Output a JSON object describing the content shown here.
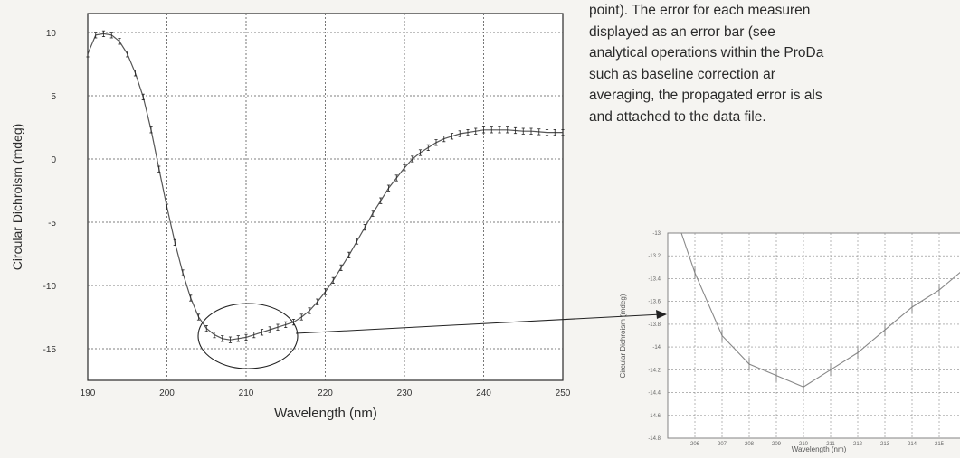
{
  "paragraph": {
    "lines": [
      "point). The error for each measuren",
      "displayed  as  an  error  bar  (see",
      "analytical operations within the ProDa",
      "such   as   baseline   correction   ar",
      "averaging, the propagated error is als",
      "and attached to the data file."
    ]
  },
  "chart_data": [
    {
      "type": "line",
      "xlabel": "Wavelength (nm)",
      "ylabel": "Circular Dichroism (mdeg)",
      "xlim": [
        190,
        250
      ],
      "ylim": [
        -17.5,
        11.5
      ],
      "xticks": [
        190,
        200,
        210,
        220,
        230,
        240,
        250
      ],
      "yticks": [
        10,
        5,
        0,
        -5,
        -10,
        -15
      ],
      "grid": true,
      "error_bars": true,
      "series": [
        {
          "x": [
            190,
            191,
            192,
            193,
            194,
            195,
            196,
            197,
            198,
            199,
            200,
            201,
            202,
            203,
            204,
            205,
            206,
            207,
            208,
            209,
            210,
            211,
            212,
            213,
            214,
            215,
            216,
            217,
            218,
            219,
            220,
            221,
            222,
            223,
            224,
            225,
            226,
            227,
            228,
            229,
            230,
            231,
            232,
            233,
            234,
            235,
            236,
            237,
            238,
            239,
            240,
            241,
            242,
            243,
            244,
            245,
            246,
            247,
            248,
            249,
            250
          ],
          "y": [
            8.3,
            9.8,
            9.9,
            9.8,
            9.3,
            8.3,
            6.8,
            4.9,
            2.3,
            -0.8,
            -3.8,
            -6.6,
            -9.0,
            -11.0,
            -12.5,
            -13.4,
            -13.9,
            -14.2,
            -14.3,
            -14.2,
            -14.1,
            -13.9,
            -13.7,
            -13.5,
            -13.3,
            -13.1,
            -12.9,
            -12.5,
            -12.0,
            -11.3,
            -10.5,
            -9.6,
            -8.6,
            -7.6,
            -6.5,
            -5.4,
            -4.3,
            -3.3,
            -2.3,
            -1.5,
            -0.7,
            0.0,
            0.5,
            0.9,
            1.3,
            1.6,
            1.8,
            2.0,
            2.1,
            2.2,
            2.3,
            2.3,
            2.3,
            2.3,
            2.25,
            2.2,
            2.2,
            2.15,
            2.1,
            2.1,
            2.1
          ]
        }
      ]
    },
    {
      "type": "line",
      "xlabel": "Wavelength (nm)",
      "ylabel": "Circular Dichroism (mdeg)",
      "xlim": [
        205,
        216
      ],
      "ylim": [
        -14.8,
        -13.0
      ],
      "xticks": [
        "206",
        "207",
        "208",
        "209",
        "210",
        "211",
        "212",
        "213",
        "214",
        "215"
      ],
      "yticks": [
        "-13",
        "-13.2",
        "-13.4",
        "-13.6",
        "-13.8",
        "-14",
        "-14.2",
        "-14.4",
        "-14.6",
        "-14.8"
      ],
      "grid": true,
      "error_bars": true,
      "series": [
        {
          "x": [
            205.5,
            206,
            207,
            208,
            209,
            210,
            211,
            212,
            213,
            214,
            215,
            216
          ],
          "y": [
            -13.0,
            -13.35,
            -13.9,
            -14.15,
            -14.25,
            -14.35,
            -14.2,
            -14.05,
            -13.85,
            -13.65,
            -13.5,
            -13.3
          ]
        }
      ]
    }
  ]
}
